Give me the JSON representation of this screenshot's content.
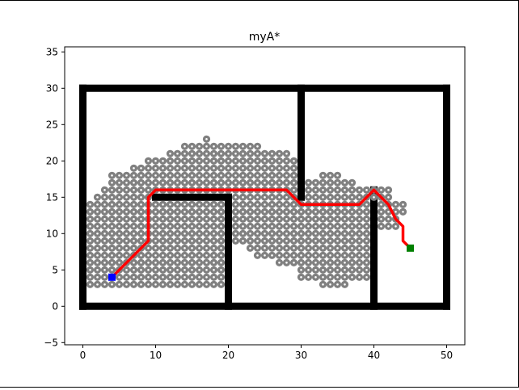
{
  "chart_data": {
    "type": "scatter",
    "title": "myA*",
    "xlabel": "",
    "ylabel": "",
    "xlim": [
      -2.5,
      52.5
    ],
    "ylim": [
      -5.3,
      35.7
    ],
    "xticks": [
      0,
      10,
      20,
      30,
      40,
      50
    ],
    "yticks": [
      -5,
      0,
      5,
      10,
      15,
      20,
      25,
      30,
      35
    ],
    "grid": false,
    "colors": {
      "obstacle": "#000000",
      "explored": "#808080",
      "path": "#ff0000",
      "start": "#0000ff",
      "goal": "#008000",
      "closed_marker": "#ffffff"
    },
    "obstacles": [
      {
        "name": "boundary-bottom",
        "x": [
          0,
          50
        ],
        "y": [
          0,
          0
        ]
      },
      {
        "name": "boundary-top",
        "x": [
          0,
          50
        ],
        "y": [
          30,
          30
        ]
      },
      {
        "name": "boundary-left",
        "x": [
          0,
          0
        ],
        "y": [
          0,
          30
        ]
      },
      {
        "name": "boundary-right",
        "x": [
          50,
          50
        ],
        "y": [
          0,
          30
        ]
      },
      {
        "name": "wall-inner-horizontal",
        "x": [
          10,
          20
        ],
        "y": [
          15,
          15
        ]
      },
      {
        "name": "wall-inner-vertical-20",
        "x": [
          20,
          20
        ],
        "y": [
          0,
          15
        ]
      },
      {
        "name": "wall-top-vertical-30",
        "x": [
          30,
          30
        ],
        "y": [
          15,
          30
        ]
      },
      {
        "name": "wall-bottom-vertical-40",
        "x": [
          40,
          40
        ],
        "y": [
          0,
          16
        ]
      }
    ],
    "explored_rows": [
      {
        "y": 3,
        "x": [
          [
            1,
            19
          ],
          [
            33,
            36
          ]
        ]
      },
      {
        "y": 4,
        "x": [
          [
            1,
            19
          ],
          [
            30,
            39
          ]
        ]
      },
      {
        "y": 5,
        "x": [
          [
            1,
            19
          ],
          [
            30,
            39
          ]
        ]
      },
      {
        "y": 6,
        "x": [
          [
            1,
            19
          ],
          [
            27,
            39
          ]
        ]
      },
      {
        "y": 7,
        "x": [
          [
            1,
            19
          ],
          [
            24,
            39
          ]
        ]
      },
      {
        "y": 8,
        "x": [
          [
            1,
            19
          ],
          [
            23,
            39
          ]
        ]
      },
      {
        "y": 9,
        "x": [
          [
            1,
            19
          ],
          [
            21,
            39
          ]
        ]
      },
      {
        "y": 10,
        "x": [
          [
            1,
            19
          ],
          [
            21,
            39
          ]
        ]
      },
      {
        "y": 11,
        "x": [
          [
            1,
            19
          ],
          [
            21,
            39
          ],
          [
            41,
            43
          ]
        ]
      },
      {
        "y": 12,
        "x": [
          [
            1,
            19
          ],
          [
            21,
            39
          ],
          [
            41,
            43
          ]
        ]
      },
      {
        "y": 13,
        "x": [
          [
            1,
            19
          ],
          [
            21,
            39
          ],
          [
            41,
            44
          ]
        ]
      },
      {
        "y": 14,
        "x": [
          [
            1,
            19
          ],
          [
            21,
            39
          ],
          [
            41,
            44
          ]
        ]
      },
      {
        "y": 15,
        "x": [
          [
            2,
            9
          ],
          [
            21,
            29
          ],
          [
            31,
            42
          ]
        ]
      },
      {
        "y": 16,
        "x": [
          [
            3,
            29
          ],
          [
            31,
            42
          ]
        ]
      },
      {
        "y": 17,
        "x": [
          [
            4,
            29
          ],
          [
            31,
            37
          ]
        ]
      },
      {
        "y": 18,
        "x": [
          [
            4,
            29
          ],
          [
            33,
            35
          ]
        ]
      },
      {
        "y": 19,
        "x": [
          [
            7,
            29
          ]
        ]
      },
      {
        "y": 20,
        "x": [
          [
            9,
            29
          ]
        ]
      },
      {
        "y": 21,
        "x": [
          [
            12,
            28
          ]
        ]
      },
      {
        "y": 22,
        "x": [
          [
            14,
            24
          ]
        ]
      },
      {
        "y": 23,
        "x": [
          [
            17,
            17
          ]
        ]
      }
    ],
    "path": {
      "x": [
        4,
        9,
        9,
        10,
        28,
        30,
        38,
        40,
        42,
        43,
        44,
        44,
        45
      ],
      "y": [
        4,
        9,
        15,
        16,
        16,
        14,
        14,
        16,
        14,
        12,
        11,
        9,
        8
      ]
    },
    "start": {
      "x": 4,
      "y": 4
    },
    "goal": {
      "x": 45,
      "y": 8
    }
  }
}
